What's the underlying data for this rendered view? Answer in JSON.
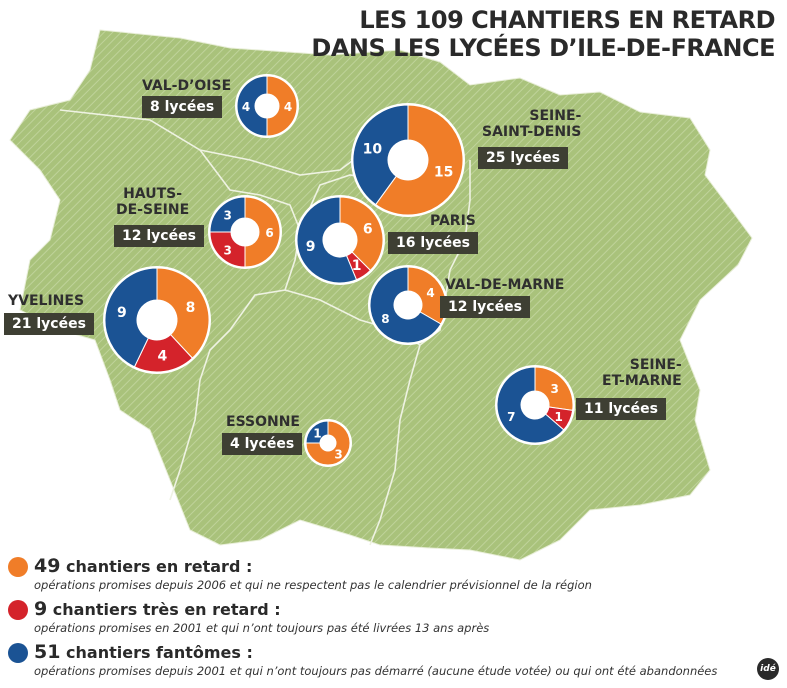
{
  "title": {
    "line1": "LES 109 CHANTIERS EN RETARD",
    "line2": "DANS LES LYCÉES D’ILE-DE-FRANCE"
  },
  "colors": {
    "retard": "#f07d28",
    "tres_retard": "#d4232b",
    "fantome": "#1b5394",
    "map_fill": "#a8c17a",
    "label_box": "#3e3f33"
  },
  "departments": [
    {
      "id": "val-doise",
      "name": "VAL-D’OISE",
      "lycees": "8 lycées",
      "retard": 4,
      "tres_retard": 0,
      "fantome": 4
    },
    {
      "id": "seine-saint-denis",
      "name": "SEINE-\nSAINT-DENIS",
      "lycees": "25 lycées",
      "retard": 15,
      "tres_retard": 0,
      "fantome": 10
    },
    {
      "id": "hauts-de-seine",
      "name": "HAUTS-\nDE-SEINE",
      "lycees": "12 lycées",
      "retard": 6,
      "tres_retard": 3,
      "fantome": 3
    },
    {
      "id": "paris",
      "name": "PARIS",
      "lycees": "16 lycées",
      "retard": 6,
      "tres_retard": 1,
      "fantome": 9
    },
    {
      "id": "val-de-marne",
      "name": "VAL-DE-MARNE",
      "lycees": "12 lycées",
      "retard": 4,
      "tres_retard": 0,
      "fantome": 8
    },
    {
      "id": "yvelines",
      "name": "YVELINES",
      "lycees": "21 lycées",
      "retard": 8,
      "tres_retard": 4,
      "fantome": 9
    },
    {
      "id": "seine-et-marne",
      "name": "SEINE-\nET-MARNE",
      "lycees": "11 lycées",
      "retard": 3,
      "tres_retard": 1,
      "fantome": 7
    },
    {
      "id": "essonne",
      "name": "ESSONNE",
      "lycees": "4 lycées",
      "retard": 3,
      "tres_retard": 0,
      "fantome": 1
    }
  ],
  "legend": [
    {
      "key": "retard",
      "number": "49",
      "label": " chantiers en retard :",
      "desc": "opérations promises depuis 2006 et qui ne respectent pas le calendrier prévisionnel de la région"
    },
    {
      "key": "tres_retard",
      "number": "9",
      "label": " chantiers très en retard :",
      "desc": "opérations promises en 2001 et qui n’ont toujours pas été livrées 13 ans après"
    },
    {
      "key": "fantome",
      "number": "51",
      "label": " chantiers fantômes :",
      "desc": "opérations promises depuis 2001 et qui n’ont toujours pas démarré (aucune étude votée) ou qui ont été abandonnées"
    }
  ],
  "logo": "idé"
}
